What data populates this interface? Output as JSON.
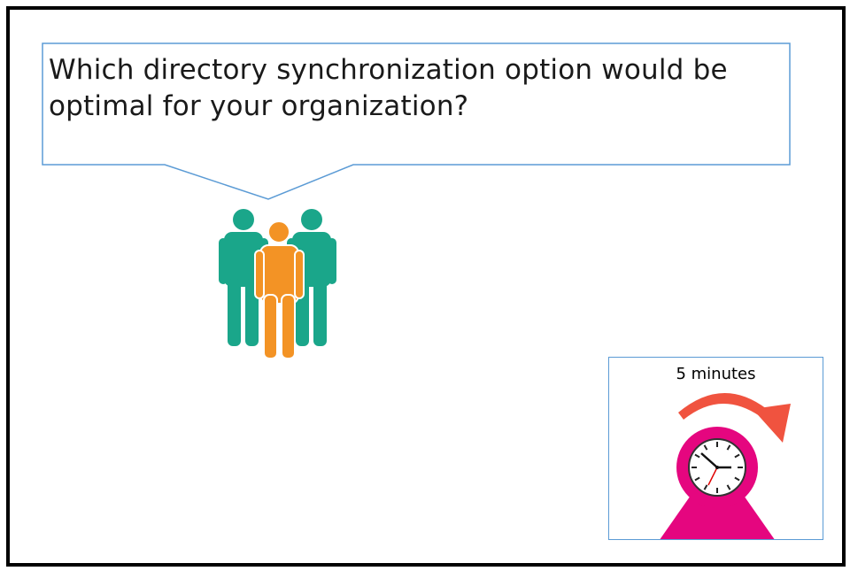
{
  "question": {
    "line1": "Which directory synchronization option would be",
    "line2": "optimal for your organization?"
  },
  "timer": {
    "label": "5 minutes"
  },
  "icons": {
    "people": "people-group-icon",
    "clock": "alarm-clock-icon",
    "arrow": "curved-arrow-icon"
  },
  "colors": {
    "callout_border": "#5b9bd5",
    "person_back": "#1aa68a",
    "person_front": "#f39325",
    "clock_body": "#e5067f",
    "arrow": "#f0533f"
  }
}
